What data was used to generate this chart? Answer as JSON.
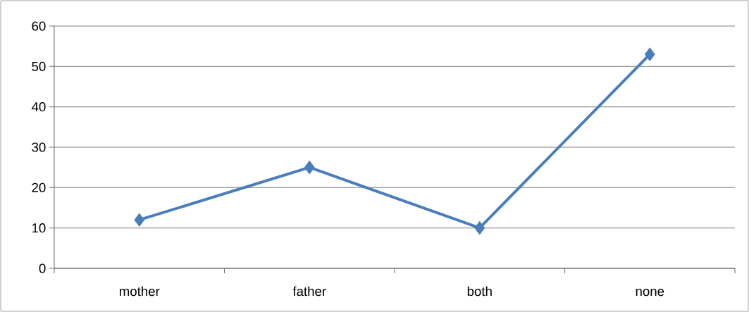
{
  "chart_data": {
    "type": "line",
    "categories": [
      "mother",
      "father",
      "both",
      "none"
    ],
    "values": [
      12,
      25,
      10,
      53
    ],
    "color": "#4a7ebb",
    "marker": "diamond",
    "ylim": [
      0,
      60
    ],
    "yticks": [
      0,
      10,
      20,
      30,
      40,
      50,
      60
    ],
    "grid": "y"
  }
}
